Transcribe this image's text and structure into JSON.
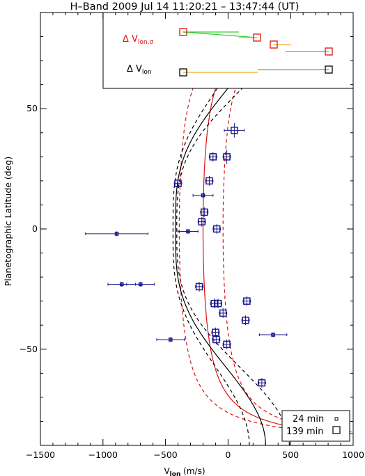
{
  "chart_data": {
    "type": "scatter",
    "title": "H–Band 2009 Jul 14 11:20:21 – 13:47:44 (UT)",
    "xlabel": "V",
    "xlabel_sub": "lon",
    "xlabel_unit": " (m/s)",
    "ylabel": "Planetographic Latitude (deg)",
    "xlim": [
      -1500,
      1000
    ],
    "ylim": [
      -90,
      90
    ],
    "xticks": [
      -1500,
      -1000,
      -500,
      0,
      500,
      1000
    ],
    "xticklabels": [
      "−1500",
      "−1000",
      "−500",
      "0",
      "500",
      "1000"
    ],
    "yticks": [
      -50,
      0,
      50
    ],
    "yticklabels": [
      "−50",
      "0",
      "50"
    ],
    "colors": {
      "data": "#1a1a8c",
      "model_red": "#e01010",
      "green": "#33cc33",
      "orange": "#f5a623"
    },
    "inset": {
      "label_sigma": "Δ V",
      "label_sigma_sub": "lon,σ",
      "label": "Δ V",
      "label_sub": "lon"
    },
    "legend_box": {
      "items": [
        "24 min",
        "139 min"
      ]
    },
    "series": [
      {
        "name": "24 min",
        "points": [
          {
            "x": -890,
            "y": -2,
            "xerr": 250,
            "yerr": 1
          },
          {
            "x": -850,
            "y": -23,
            "xerr": 110,
            "yerr": 1
          },
          {
            "x": -700,
            "y": -23,
            "xerr": 110,
            "yerr": 1
          },
          {
            "x": -460,
            "y": -46,
            "xerr": 110,
            "yerr": 1
          },
          {
            "x": -320,
            "y": -1,
            "xerr": 80,
            "yerr": 1
          },
          {
            "x": -200,
            "y": 14,
            "xerr": 80,
            "yerr": 1
          },
          {
            "x": 360,
            "y": -44,
            "xerr": 110,
            "yerr": 1
          }
        ]
      },
      {
        "name": "139 min",
        "points": [
          {
            "x": -400,
            "y": 19,
            "xerr": 30,
            "yerr": 2
          },
          {
            "x": -230,
            "y": -24,
            "xerr": 30,
            "yerr": 2
          },
          {
            "x": -210,
            "y": 3,
            "xerr": 30,
            "yerr": 2
          },
          {
            "x": -190,
            "y": 7,
            "xerr": 30,
            "yerr": 2
          },
          {
            "x": -150,
            "y": 20,
            "xerr": 30,
            "yerr": 2
          },
          {
            "x": -120,
            "y": 30,
            "xerr": 30,
            "yerr": 2
          },
          {
            "x": -110,
            "y": -31,
            "xerr": 30,
            "yerr": 2
          },
          {
            "x": -100,
            "y": -43,
            "xerr": 30,
            "yerr": 2
          },
          {
            "x": -95,
            "y": -46,
            "xerr": 30,
            "yerr": 2
          },
          {
            "x": -90,
            "y": 0,
            "xerr": 30,
            "yerr": 2
          },
          {
            "x": -80,
            "y": -31,
            "xerr": 30,
            "yerr": 2
          },
          {
            "x": -40,
            "y": -35,
            "xerr": 30,
            "yerr": 2
          },
          {
            "x": -10,
            "y": -48,
            "xerr": 30,
            "yerr": 2
          },
          {
            "x": -10,
            "y": 30,
            "xerr": 30,
            "yerr": 3
          },
          {
            "x": 50,
            "y": 41,
            "xerr": 80,
            "yerr": 3
          },
          {
            "x": 140,
            "y": -38,
            "xerr": 30,
            "yerr": 2
          },
          {
            "x": 150,
            "y": -30,
            "xerr": 30,
            "yerr": 2
          },
          {
            "x": 270,
            "y": -64,
            "xerr": 30,
            "yerr": 2
          }
        ]
      }
    ]
  }
}
